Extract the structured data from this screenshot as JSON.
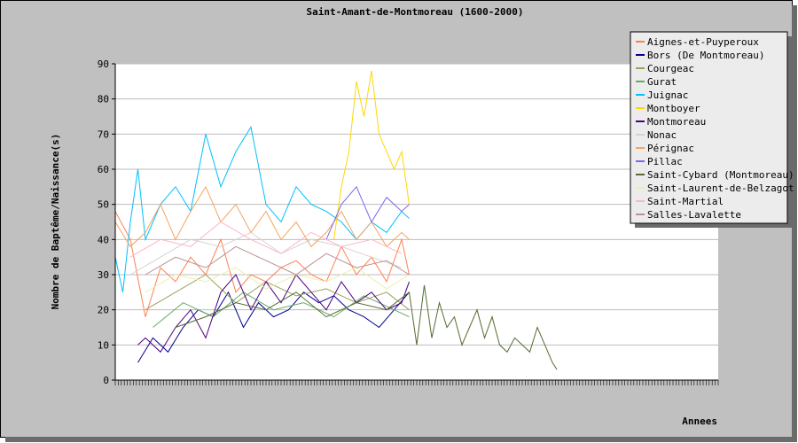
{
  "chart_data": {
    "type": "line",
    "title": "Saint-Amant-de-Montmoreau (1600-2000)",
    "xlabel": "Annees",
    "ylabel": "Nombre de Baptême/Naissance(s)",
    "xlim": [
      1600,
      2000
    ],
    "ylim": [
      0,
      90
    ],
    "yticks": [
      0,
      10,
      20,
      30,
      40,
      50,
      60,
      70,
      80,
      90
    ],
    "grid": true,
    "legend_position": "top-right",
    "series": [
      {
        "name": "Aignes-et-Puyperoux",
        "color": "#ff7f50",
        "x": [
          1600,
          1610,
          1620,
          1630,
          1640,
          1650,
          1660,
          1670,
          1680,
          1690,
          1700,
          1710,
          1720,
          1730,
          1740,
          1750,
          1760,
          1770,
          1780,
          1790,
          1795
        ],
        "y": [
          48,
          40,
          18,
          32,
          28,
          35,
          30,
          40,
          25,
          30,
          28,
          32,
          34,
          30,
          28,
          38,
          30,
          35,
          28,
          40,
          30
        ]
      },
      {
        "name": "Bors (De Montmoreau)",
        "color": "#00008b",
        "x": [
          1615,
          1625,
          1635,
          1645,
          1655,
          1665,
          1675,
          1685,
          1695,
          1705,
          1715,
          1725,
          1735,
          1745,
          1755,
          1765,
          1775,
          1785,
          1795
        ],
        "y": [
          5,
          12,
          8,
          15,
          20,
          18,
          25,
          15,
          22,
          18,
          20,
          25,
          22,
          24,
          20,
          18,
          15,
          20,
          25
        ]
      },
      {
        "name": "Courgeac",
        "color": "#a0a060",
        "x": [
          1620,
          1640,
          1660,
          1680,
          1700,
          1720,
          1740,
          1760,
          1780,
          1795
        ],
        "y": [
          20,
          25,
          30,
          22,
          28,
          24,
          26,
          22,
          25,
          20
        ]
      },
      {
        "name": "Gurat",
        "color": "#66aa66",
        "x": [
          1625,
          1645,
          1665,
          1685,
          1705,
          1725,
          1745,
          1765,
          1785,
          1795
        ],
        "y": [
          15,
          22,
          18,
          25,
          20,
          22,
          18,
          24,
          20,
          18
        ]
      },
      {
        "name": "Juignac",
        "color": "#00bfff",
        "x": [
          1600,
          1605,
          1610,
          1615,
          1620,
          1630,
          1640,
          1650,
          1660,
          1670,
          1680,
          1690,
          1700,
          1710,
          1720,
          1730,
          1740,
          1750,
          1760,
          1770,
          1780,
          1790,
          1795
        ],
        "y": [
          35,
          25,
          45,
          60,
          40,
          50,
          55,
          48,
          70,
          55,
          65,
          72,
          50,
          45,
          55,
          50,
          48,
          45,
          40,
          45,
          42,
          48,
          46
        ]
      },
      {
        "name": "Montboyer",
        "color": "#ffd700",
        "x": [
          1745,
          1750,
          1755,
          1760,
          1765,
          1770,
          1775,
          1780,
          1785,
          1790,
          1795
        ],
        "y": [
          40,
          55,
          65,
          85,
          75,
          88,
          70,
          65,
          60,
          65,
          50
        ]
      },
      {
        "name": "Montmoreau",
        "color": "#4b0082",
        "x": [
          1615,
          1620,
          1630,
          1640,
          1650,
          1660,
          1670,
          1680,
          1690,
          1700,
          1710,
          1720,
          1730,
          1740,
          1750,
          1760,
          1770,
          1780,
          1790,
          1795
        ],
        "y": [
          10,
          12,
          8,
          15,
          20,
          12,
          25,
          30,
          20,
          28,
          22,
          30,
          25,
          20,
          28,
          22,
          25,
          20,
          22,
          28
        ]
      },
      {
        "name": "Nonac",
        "color": "#d3d3d3",
        "x": [
          1610,
          1630,
          1650,
          1670,
          1690,
          1710,
          1730,
          1750,
          1770,
          1790
        ],
        "y": [
          30,
          35,
          40,
          38,
          42,
          36,
          40,
          38,
          35,
          32
        ]
      },
      {
        "name": "Pérignac",
        "color": "#f4a460",
        "x": [
          1600,
          1610,
          1620,
          1630,
          1640,
          1650,
          1660,
          1670,
          1680,
          1690,
          1700,
          1710,
          1720,
          1730,
          1740,
          1750,
          1760,
          1770,
          1780,
          1790,
          1795
        ],
        "y": [
          45,
          38,
          42,
          50,
          40,
          48,
          55,
          45,
          50,
          42,
          48,
          40,
          45,
          38,
          42,
          48,
          40,
          45,
          38,
          42,
          40
        ]
      },
      {
        "name": "Pillac",
        "color": "#7b68ee",
        "x": [
          1740,
          1750,
          1760,
          1770,
          1780,
          1790,
          1795
        ],
        "y": [
          40,
          50,
          55,
          45,
          52,
          48,
          50
        ]
      },
      {
        "name": "Saint-Cybard (Montmoreau)",
        "color": "#556b2f",
        "x": [
          1640,
          1660,
          1680,
          1700,
          1720,
          1740,
          1760,
          1780,
          1795,
          1800,
          1805,
          1810,
          1815,
          1820,
          1825,
          1830,
          1835,
          1840,
          1845,
          1850,
          1855,
          1860,
          1865,
          1870,
          1875,
          1880,
          1885,
          1890,
          1893
        ],
        "y": [
          15,
          18,
          22,
          20,
          25,
          18,
          22,
          20,
          25,
          10,
          27,
          12,
          22,
          15,
          18,
          10,
          15,
          20,
          12,
          18,
          10,
          8,
          12,
          10,
          8,
          15,
          10,
          5,
          3
        ]
      },
      {
        "name": "Saint-Laurent-de-Belzagot",
        "color": "#eeeeaa",
        "x": [
          1620,
          1640,
          1660,
          1680,
          1700,
          1720,
          1740,
          1760,
          1780,
          1795
        ],
        "y": [
          25,
          30,
          28,
          32,
          26,
          30,
          28,
          32,
          26,
          30
        ]
      },
      {
        "name": "Saint-Martial",
        "color": "#ffb6c1",
        "x": [
          1610,
          1630,
          1650,
          1670,
          1690,
          1710,
          1730,
          1750,
          1770,
          1790
        ],
        "y": [
          35,
          40,
          38,
          45,
          40,
          36,
          42,
          38,
          40,
          36
        ]
      },
      {
        "name": "Salles-Lavalette",
        "color": "#bc8f8f",
        "x": [
          1620,
          1640,
          1660,
          1680,
          1700,
          1720,
          1740,
          1760,
          1780,
          1795
        ],
        "y": [
          30,
          35,
          32,
          38,
          34,
          30,
          36,
          32,
          34,
          30
        ]
      }
    ]
  }
}
